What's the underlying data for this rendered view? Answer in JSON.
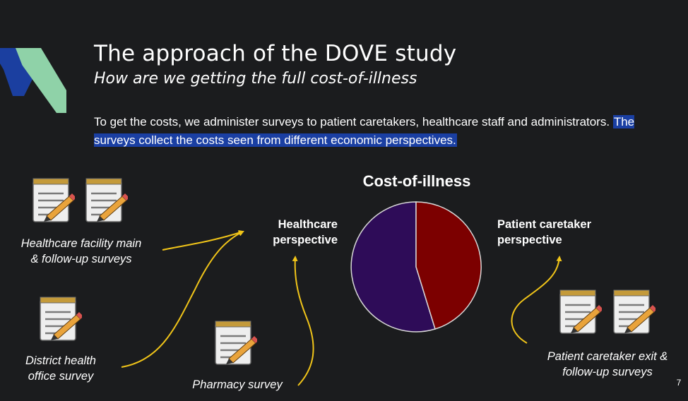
{
  "slide": {
    "title": "The approach of the DOVE study",
    "subtitle": "How are we getting the full cost-of-illness",
    "body": {
      "text": "To get the costs, we administer surveys to patient caretakers, healthcare staff and administrators. ",
      "highlight": "The surveys collect the costs seen from different economic perspectives."
    },
    "page_number": "7"
  },
  "diagram": {
    "chart_title": "Cost-of-illness",
    "perspectives": {
      "healthcare_line1": "Healthcare",
      "healthcare_line2": "perspective",
      "patient_line1": "Patient caretaker",
      "patient_line2": "perspective"
    },
    "surveys": {
      "facility_line1": "Healthcare facility main",
      "facility_line2": "& follow-up surveys",
      "district_line1": "District health",
      "district_line2": "office survey",
      "pharmacy": "Pharmacy survey",
      "patient_line1": "Patient caretaker exit &",
      "patient_line2": "follow-up surveys"
    }
  },
  "colors": {
    "background": "#1b1c1e",
    "highlight": "#1a3fa3",
    "arrow": "#f0c419",
    "pie_healthcare": "#2e0c58",
    "pie_patient": "#7c0000",
    "logo_blue": "#1b3fa0",
    "logo_green": "#8fd2a8"
  },
  "icons": [
    "notepad-pencil-icon"
  ]
}
